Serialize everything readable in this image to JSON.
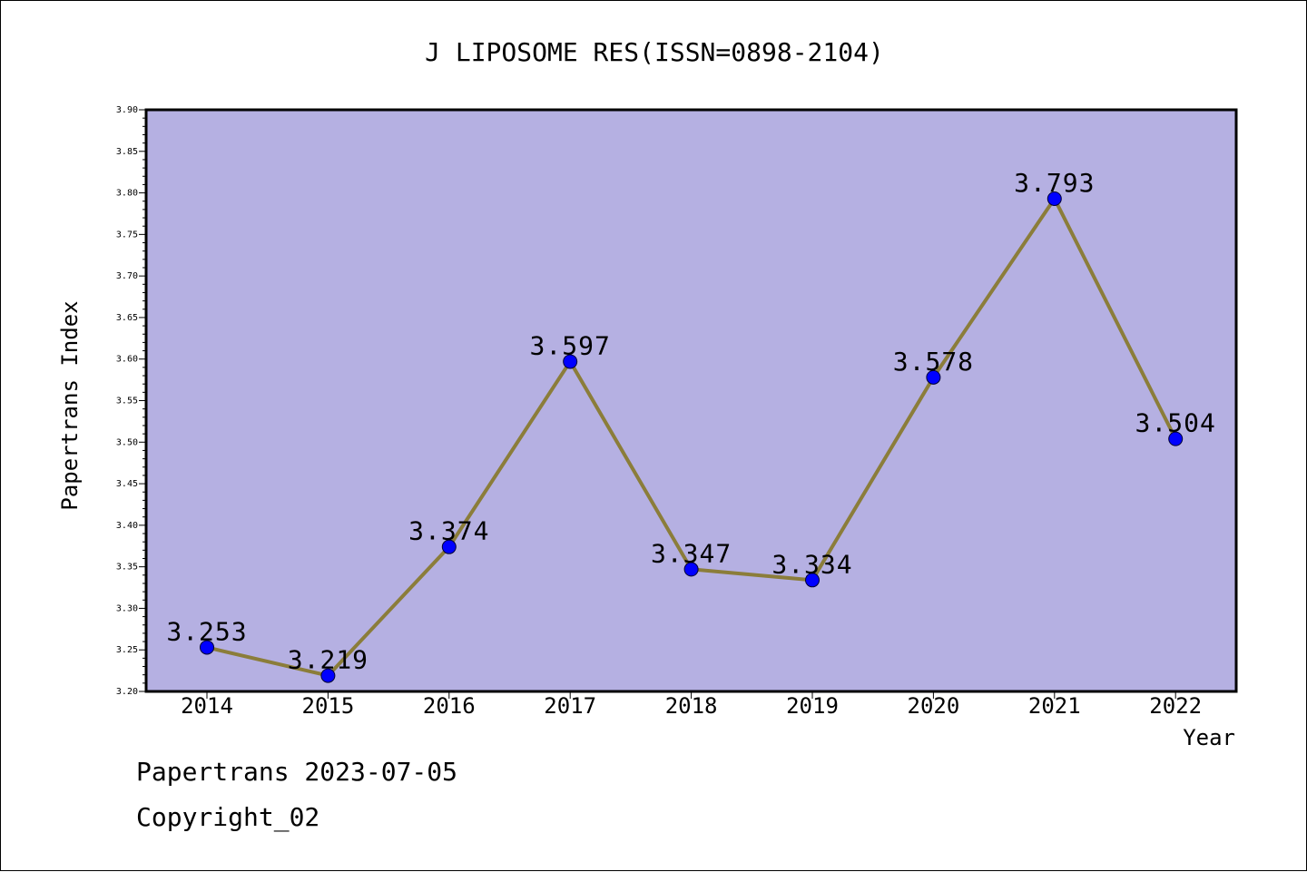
{
  "chart_data": {
    "type": "line",
    "title": "J LIPOSOME RES(ISSN=0898-2104)",
    "xlabel": "Year",
    "ylabel": "Papertrans Index",
    "categories": [
      "2014",
      "2015",
      "2016",
      "2017",
      "2018",
      "2019",
      "2020",
      "2021",
      "2022"
    ],
    "values": [
      3.253,
      3.219,
      3.374,
      3.597,
      3.347,
      3.334,
      3.578,
      3.793,
      3.504
    ],
    "value_labels": [
      "3.253",
      "3.219",
      "3.374",
      "3.597",
      "3.347",
      "3.334",
      "3.578",
      "3.793",
      "3.504"
    ],
    "ylim": [
      3.2,
      3.9
    ],
    "yticks": [
      "3.20",
      "3.25",
      "3.30",
      "3.35",
      "3.40",
      "3.45",
      "3.50",
      "3.55",
      "3.60",
      "3.65",
      "3.70",
      "3.75",
      "3.80",
      "3.85",
      "3.90"
    ],
    "grid": false,
    "colors": {
      "plot_background": "#b5b0e2",
      "line": "#8b7d3a",
      "marker": "#0000ff"
    }
  },
  "footer": {
    "line1": "Papertrans 2023-07-05",
    "line2": "Copyright_02"
  }
}
